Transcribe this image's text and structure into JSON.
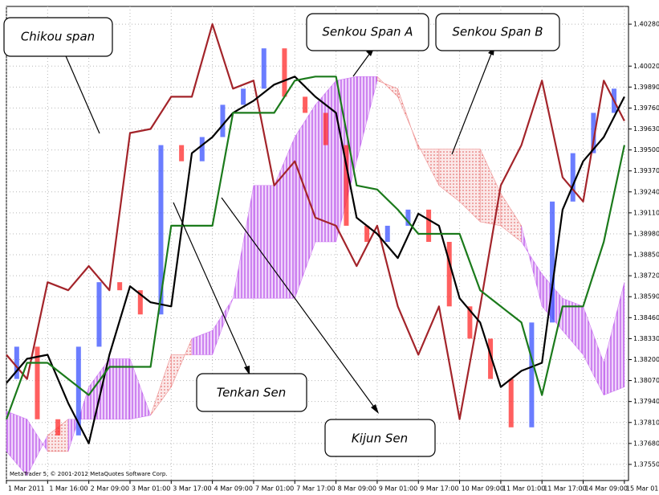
{
  "chart_data": {
    "type": "line",
    "watermark": "MetaTrader 5, © 2001-2012 MetaQuotes Software Corp.",
    "x": [
      0,
      0.5,
      1,
      1.5,
      2,
      2.5,
      3,
      3.5,
      4,
      4.5,
      5,
      5.5,
      6,
      6.5,
      7,
      7.5,
      8,
      8.5,
      9,
      9.5,
      10,
      10.5,
      11,
      11.5,
      12,
      12.5,
      13,
      13.5,
      14,
      14.5,
      15
    ],
    "xlim": [
      0,
      15.1
    ],
    "xticks": [
      {
        "value": 0,
        "label": "1 Mar 2011"
      },
      {
        "value": 1,
        "label": "1 Mar 16:00"
      },
      {
        "value": 2,
        "label": "2 Mar 09:00"
      },
      {
        "value": 3,
        "label": "3 Mar 01:00"
      },
      {
        "value": 4,
        "label": "3 Mar 17:00"
      },
      {
        "value": 5,
        "label": "4 Mar 09:00"
      },
      {
        "value": 6,
        "label": "7 Mar 01:00"
      },
      {
        "value": 7,
        "label": "7 Mar 17:00"
      },
      {
        "value": 8,
        "label": "8 Mar 09:00"
      },
      {
        "value": 9,
        "label": "9 Mar 01:00"
      },
      {
        "value": 10,
        "label": "9 Mar 17:00"
      },
      {
        "value": 11,
        "label": "10 Mar 09:00"
      },
      {
        "value": 12,
        "label": "11 Mar 01:00"
      },
      {
        "value": 13,
        "label": "11 Mar 17:00"
      },
      {
        "value": 14,
        "label": "14 Mar 09:00"
      },
      {
        "value": 15,
        "label": "15 Mar 01:00"
      }
    ],
    "ylim": [
      1.3745,
      1.4039
    ],
    "yticks": [
      {
        "value": 1.4028,
        "label": "1.40280"
      },
      {
        "value": 1.4002,
        "label": "1.40020"
      },
      {
        "value": 1.3989,
        "label": "1.39890"
      },
      {
        "value": 1.3976,
        "label": "1.39760"
      },
      {
        "value": 1.3963,
        "label": "1.39630"
      },
      {
        "value": 1.395,
        "label": "1.39500"
      },
      {
        "value": 1.3937,
        "label": "1.39370"
      },
      {
        "value": 1.3924,
        "label": "1.39240"
      },
      {
        "value": 1.3911,
        "label": "1.39110"
      },
      {
        "value": 1.3898,
        "label": "1.38980"
      },
      {
        "value": 1.3885,
        "label": "1.38850"
      },
      {
        "value": 1.3872,
        "label": "1.38720"
      },
      {
        "value": 1.3859,
        "label": "1.38590"
      },
      {
        "value": 1.3846,
        "label": "1.38460"
      },
      {
        "value": 1.3833,
        "label": "1.38330"
      },
      {
        "value": 1.382,
        "label": "1.38200"
      },
      {
        "value": 1.3807,
        "label": "1.38070"
      },
      {
        "value": 1.3794,
        "label": "1.37940"
      },
      {
        "value": 1.3781,
        "label": "1.37810"
      },
      {
        "value": 1.3768,
        "label": "1.37680"
      },
      {
        "value": 1.3755,
        "label": "1.37550"
      }
    ],
    "grid": true,
    "candles": {
      "up_color": "#3a52ff",
      "down_color": "#ff2a2a",
      "close": [
        1.3808,
        1.3828,
        1.3783,
        1.3773,
        1.3828,
        1.3868,
        1.3863,
        1.3848,
        1.3953,
        1.3943,
        1.3958,
        1.3978,
        1.3988,
        1.4013,
        1.3983,
        1.3973,
        1.3953,
        1.3903,
        1.3893,
        1.3903,
        1.3913,
        1.3893,
        1.3853,
        1.3833,
        1.3808,
        1.3778,
        1.3843,
        1.3918,
        1.3948,
        1.3973,
        1.3988
      ]
    },
    "cloud": {
      "up_color": "#c35cf0",
      "down_color": "#e86a6a"
    },
    "series": [
      {
        "name": "Chikou span",
        "color": "#a3242a",
        "values": [
          1.3823,
          1.3808,
          1.3868,
          1.3863,
          1.3878,
          1.3863,
          1.39605,
          1.3963,
          1.3983,
          1.3983,
          1.4028,
          1.3988,
          1.3993,
          1.3928,
          1.3943,
          1.3908,
          1.3903,
          1.3878,
          1.3903,
          1.3853,
          1.3823,
          1.3853,
          1.3783,
          1.3853,
          1.3928,
          1.3953,
          1.3993,
          1.3933,
          1.3918,
          1.3993,
          1.3968
        ]
      },
      {
        "name": "Senkou Span A",
        "color": "#c35cf0",
        "cloud": "a",
        "values": [
          1.3788,
          1.3783,
          1.3763,
          1.3763,
          1.3803,
          1.38205,
          1.38205,
          1.37855,
          1.3803,
          1.3833,
          1.3838,
          1.3858,
          1.3928,
          1.3928,
          1.3958,
          1.3978,
          1.3993,
          1.39955,
          1.39955,
          1.3983,
          1.3953,
          1.3928,
          1.3918,
          1.39055,
          1.3903,
          1.3893,
          1.3873,
          1.3858,
          1.3853,
          1.3818,
          1.3868
        ]
      },
      {
        "name": "Senkou Span B",
        "color": "#e86a6a",
        "cloud": "b",
        "values": [
          1.3763,
          1.3748,
          1.3773,
          1.3783,
          1.3783,
          1.3783,
          1.3783,
          1.37855,
          1.3823,
          1.3823,
          1.3823,
          1.3858,
          1.3858,
          1.3858,
          1.3858,
          1.3893,
          1.3893,
          1.3943,
          1.3993,
          1.3988,
          1.39505,
          1.39505,
          1.39505,
          1.39505,
          1.3923,
          1.3903,
          1.3853,
          1.3838,
          1.3823,
          1.3798,
          1.3803
        ]
      },
      {
        "name": "Tenkan Sen",
        "color": "#000000",
        "values": [
          1.38055,
          1.38205,
          1.3823,
          1.3793,
          1.3768,
          1.3823,
          1.38655,
          1.38555,
          1.3853,
          1.3948,
          1.3958,
          1.3973,
          1.39805,
          1.39905,
          1.39955,
          1.3983,
          1.3973,
          1.3908,
          1.3898,
          1.3883,
          1.39105,
          1.3903,
          1.3858,
          1.3843,
          1.3803,
          1.3813,
          1.3818,
          1.3913,
          1.3943,
          1.3958,
          1.3983
        ]
      },
      {
        "name": "Kijun Sen",
        "color": "#1b7a1b",
        "values": [
          1.3783,
          1.3818,
          1.3818,
          1.3808,
          1.3798,
          1.38155,
          1.38155,
          1.38155,
          1.3903,
          1.3903,
          1.3903,
          1.3973,
          1.3973,
          1.3973,
          1.3993,
          1.39955,
          1.39955,
          1.3928,
          1.39255,
          1.3913,
          1.3898,
          1.3898,
          1.3898,
          1.3863,
          1.3853,
          1.3843,
          1.3798,
          1.3853,
          1.3853,
          1.3893,
          1.3953
        ]
      }
    ]
  }
}
